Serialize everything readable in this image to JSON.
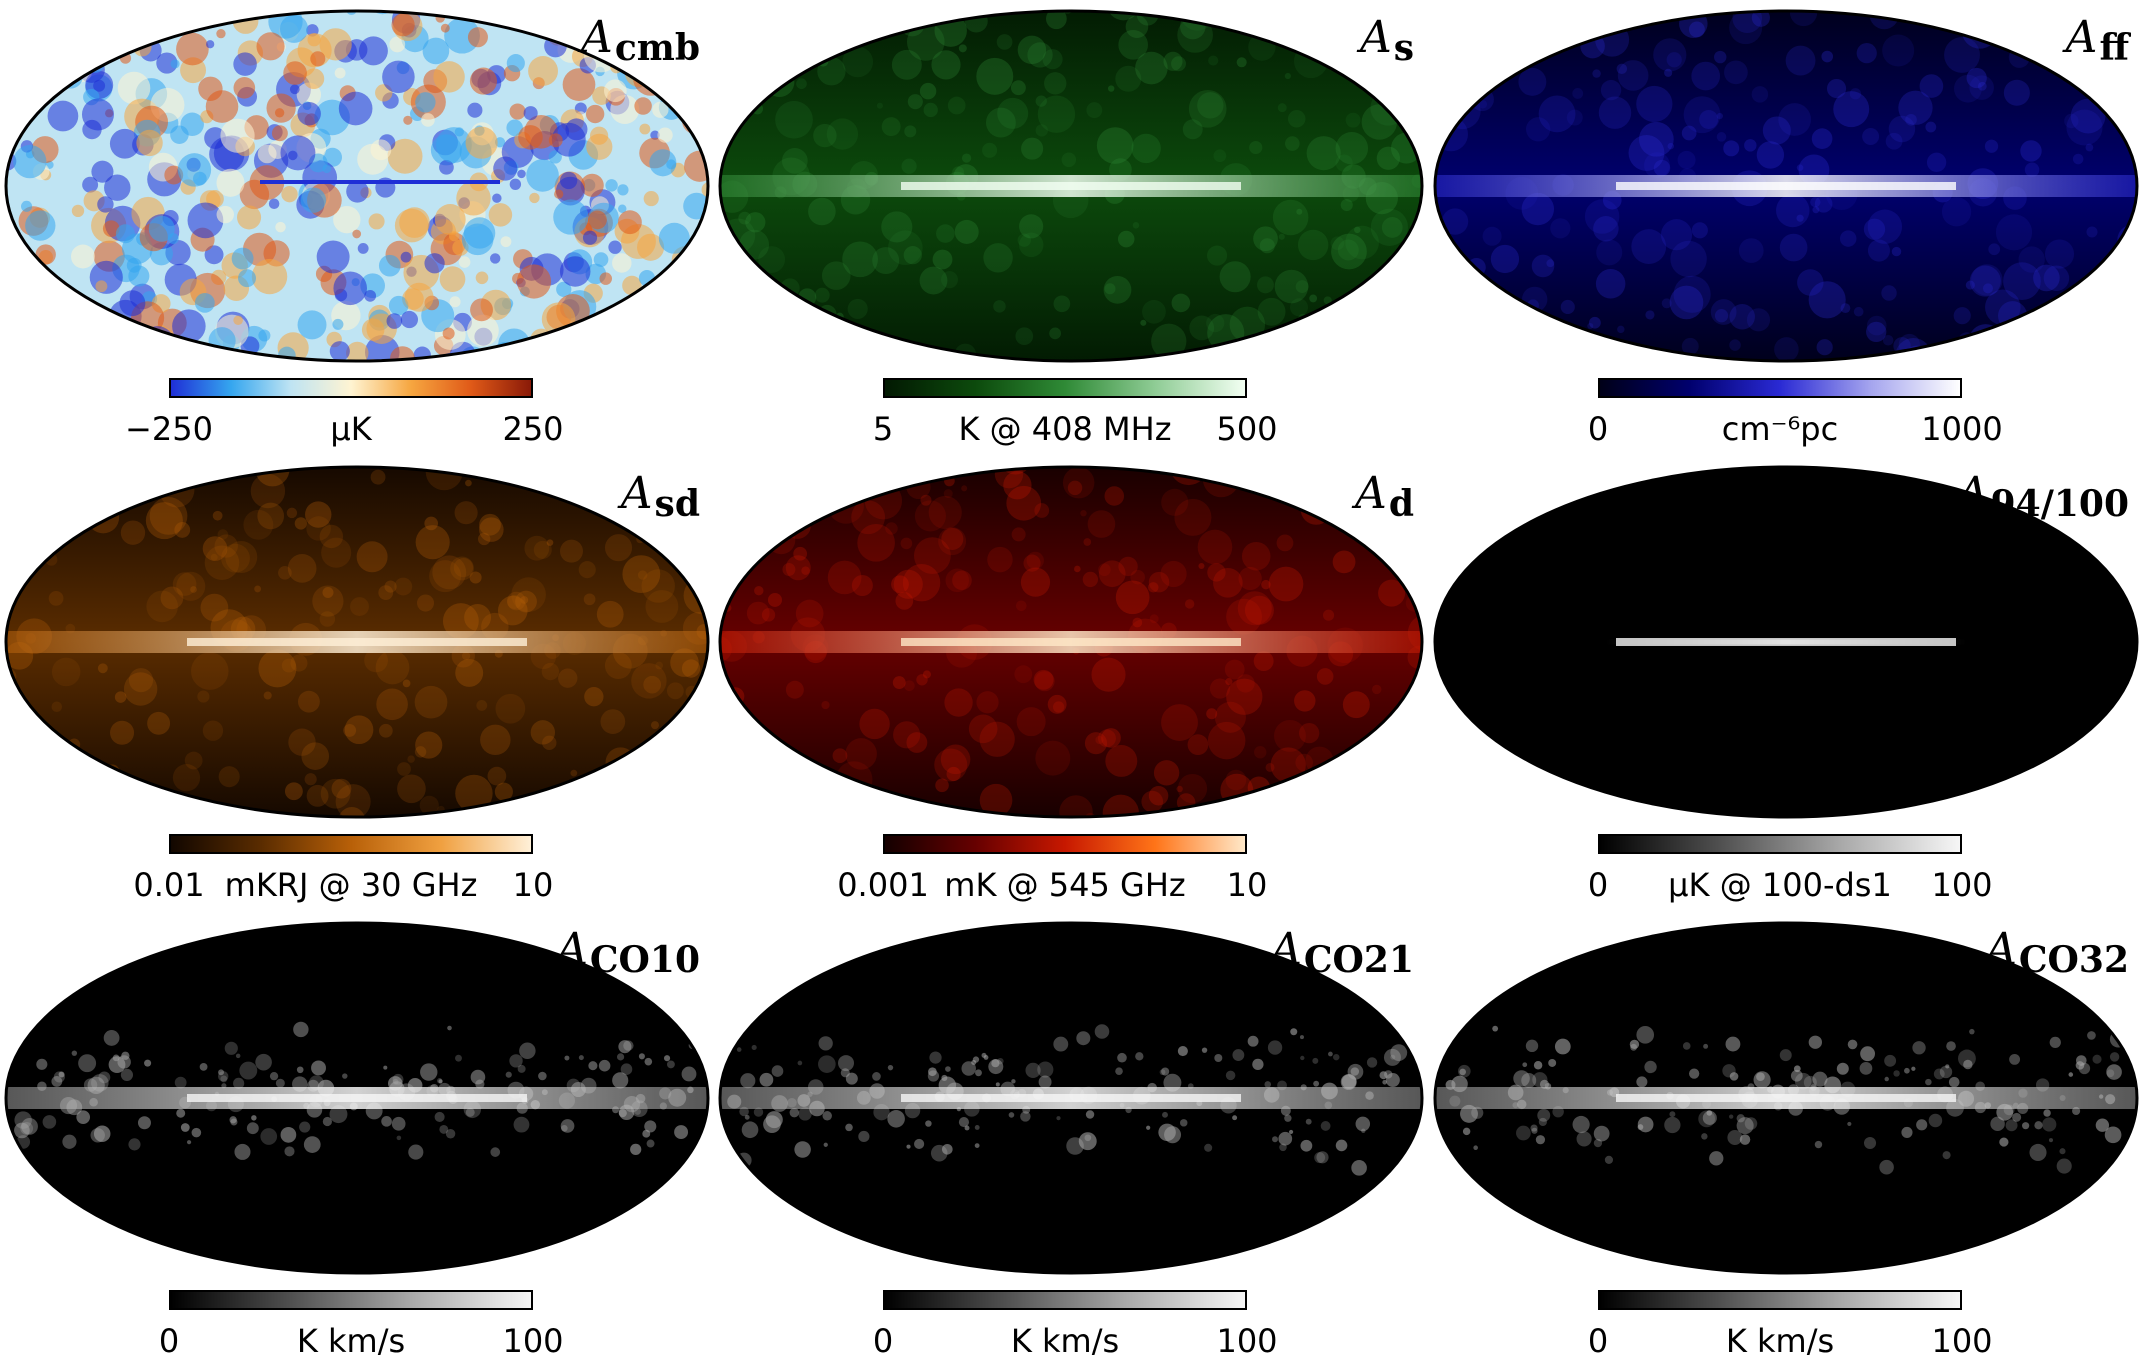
{
  "panels": [
    {
      "title_main": "A",
      "title_sub": "cmb",
      "min": "−250",
      "max": "250",
      "unit": "μK",
      "colors": [
        "#1f2fd6",
        "#35a6ef",
        "#bfe4f3",
        "#fff4d2",
        "#f6a640",
        "#e05a18",
        "#8a1a08"
      ]
    },
    {
      "title_main": "A",
      "title_sub": "s",
      "min": "5",
      "max": "500",
      "unit": "K @ 408 MHz",
      "colors": [
        "#021902",
        "#0c4a0c",
        "#2f8a36",
        "#8fcc95",
        "#f2fff2"
      ]
    },
    {
      "title_main": "A",
      "title_sub": "ff",
      "min": "0",
      "max": "1000",
      "unit": "cm⁻⁶pc",
      "colors": [
        "#000018",
        "#00006e",
        "#2a2ad4",
        "#a4a4ee",
        "#ffffff"
      ]
    },
    {
      "title_main": "A",
      "title_sub": "sd",
      "min": "0.01",
      "max": "10",
      "unit": "mKRJ @ 30 GHz",
      "colors": [
        "#120700",
        "#5a2c00",
        "#b86008",
        "#f0a040",
        "#fff0d8"
      ]
    },
    {
      "title_main": "A",
      "title_sub": "d",
      "min": "0.001",
      "max": "10",
      "unit": "mK @ 545 GHz",
      "colors": [
        "#140000",
        "#660000",
        "#c71800",
        "#ff7418",
        "#ffe8c8"
      ]
    },
    {
      "title_main": "A",
      "title_sub": "94/100",
      "min": "0",
      "max": "100",
      "unit": "μK @ 100-ds1",
      "colors": [
        "#000000",
        "#505050",
        "#a8a8a8",
        "#f6f6f6"
      ]
    },
    {
      "title_main": "A",
      "title_sub": "CO10",
      "min": "0",
      "max": "100",
      "unit": "K km/s",
      "colors": [
        "#000000",
        "#505050",
        "#a8a8a8",
        "#f6f6f6"
      ]
    },
    {
      "title_main": "A",
      "title_sub": "CO21",
      "min": "0",
      "max": "100",
      "unit": "K km/s",
      "colors": [
        "#000000",
        "#505050",
        "#a8a8a8",
        "#f6f6f6"
      ]
    },
    {
      "title_main": "A",
      "title_sub": "CO32",
      "min": "0",
      "max": "100",
      "unit": "K km/s",
      "colors": [
        "#000000",
        "#505050",
        "#a8a8a8",
        "#f6f6f6"
      ]
    }
  ]
}
